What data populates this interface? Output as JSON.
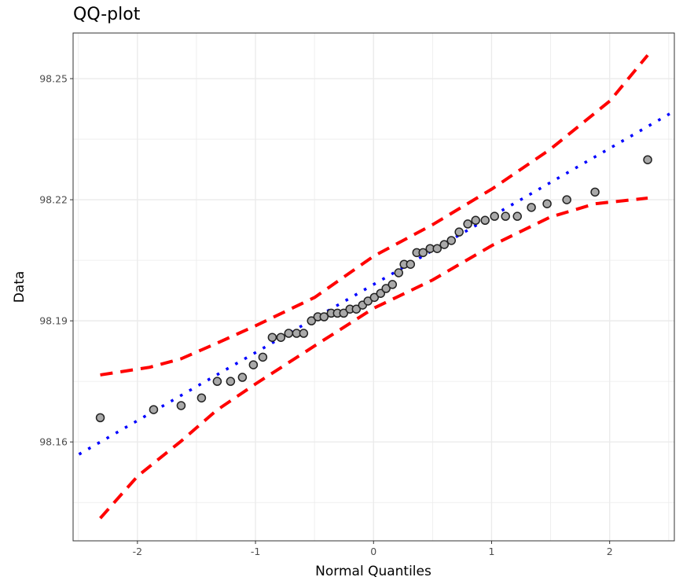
{
  "chart_data": {
    "type": "scatter",
    "title": "QQ-plot",
    "xlabel": "Normal Quantiles",
    "ylabel": "Data",
    "xlim": [
      -2.545,
      2.548
    ],
    "ylim": [
      98.1355,
      98.2613
    ],
    "xticks": [
      -2,
      -1,
      0,
      1,
      2
    ],
    "xtick_labels": [
      "-2",
      "-1",
      "0",
      "1",
      "2"
    ],
    "yticks": [
      98.16,
      98.19,
      98.22,
      98.25
    ],
    "ytick_labels": [
      "98.16",
      "98.19",
      "98.22",
      "98.25"
    ],
    "grid": true,
    "points": {
      "x": [
        -2.315,
        -1.863,
        -1.63,
        -1.457,
        -1.324,
        -1.211,
        -1.111,
        -1.018,
        -0.938,
        -0.858,
        -0.785,
        -0.719,
        -0.652,
        -0.592,
        -0.526,
        -0.472,
        -0.419,
        -0.359,
        -0.306,
        -0.253,
        -0.2,
        -0.146,
        -0.093,
        -0.047,
        0.007,
        0.06,
        0.106,
        0.16,
        0.213,
        0.259,
        0.313,
        0.366,
        0.419,
        0.479,
        0.539,
        0.599,
        0.659,
        0.725,
        0.798,
        0.865,
        0.945,
        1.025,
        1.118,
        1.218,
        1.337,
        1.47,
        1.637,
        1.876,
        2.322
      ],
      "y": [
        98.166,
        98.168,
        98.169,
        98.1709,
        98.175,
        98.175,
        98.176,
        98.1791,
        98.181,
        98.1859,
        98.1859,
        98.1869,
        98.1869,
        98.1869,
        98.19,
        98.191,
        98.191,
        98.1919,
        98.1919,
        98.1919,
        98.1929,
        98.1929,
        98.1939,
        98.1949,
        98.1958,
        98.1968,
        98.198,
        98.199,
        98.2019,
        98.204,
        98.204,
        98.2069,
        98.2069,
        98.2079,
        98.2079,
        98.2089,
        98.2099,
        98.212,
        98.214,
        98.2149,
        98.2149,
        98.2159,
        98.2159,
        98.2159,
        98.2181,
        98.219,
        98.22,
        98.2219,
        98.2299
      ],
      "fill": "#a9a9a9",
      "stroke": "#222222"
    },
    "reference_line": {
      "intercept": 98.199,
      "slope": 0.01686,
      "color": "#0000ff",
      "style": "dotted"
    },
    "confidence_band": {
      "color": "#ff0000",
      "style": "dashed",
      "upper": {
        "x": [
          -2.315,
          -1.896,
          -1.63,
          -1.331,
          -0.998,
          -0.499,
          0,
          0.499,
          1.005,
          1.497,
          2.003,
          2.322
        ],
        "y": [
          98.1766,
          98.1785,
          98.1806,
          98.1844,
          98.1888,
          98.1958,
          98.206,
          98.2138,
          98.2227,
          98.2325,
          98.2445,
          98.2558
        ]
      },
      "lower": {
        "x": [
          -2.315,
          -1.996,
          -1.63,
          -1.331,
          -0.998,
          -0.499,
          0,
          0.499,
          1.005,
          1.497,
          1.876,
          2.322
        ],
        "y": [
          98.1411,
          98.1516,
          98.1602,
          98.1678,
          98.1744,
          98.1838,
          98.1931,
          98.2001,
          98.2087,
          98.2157,
          98.219,
          98.2204
        ]
      }
    }
  }
}
